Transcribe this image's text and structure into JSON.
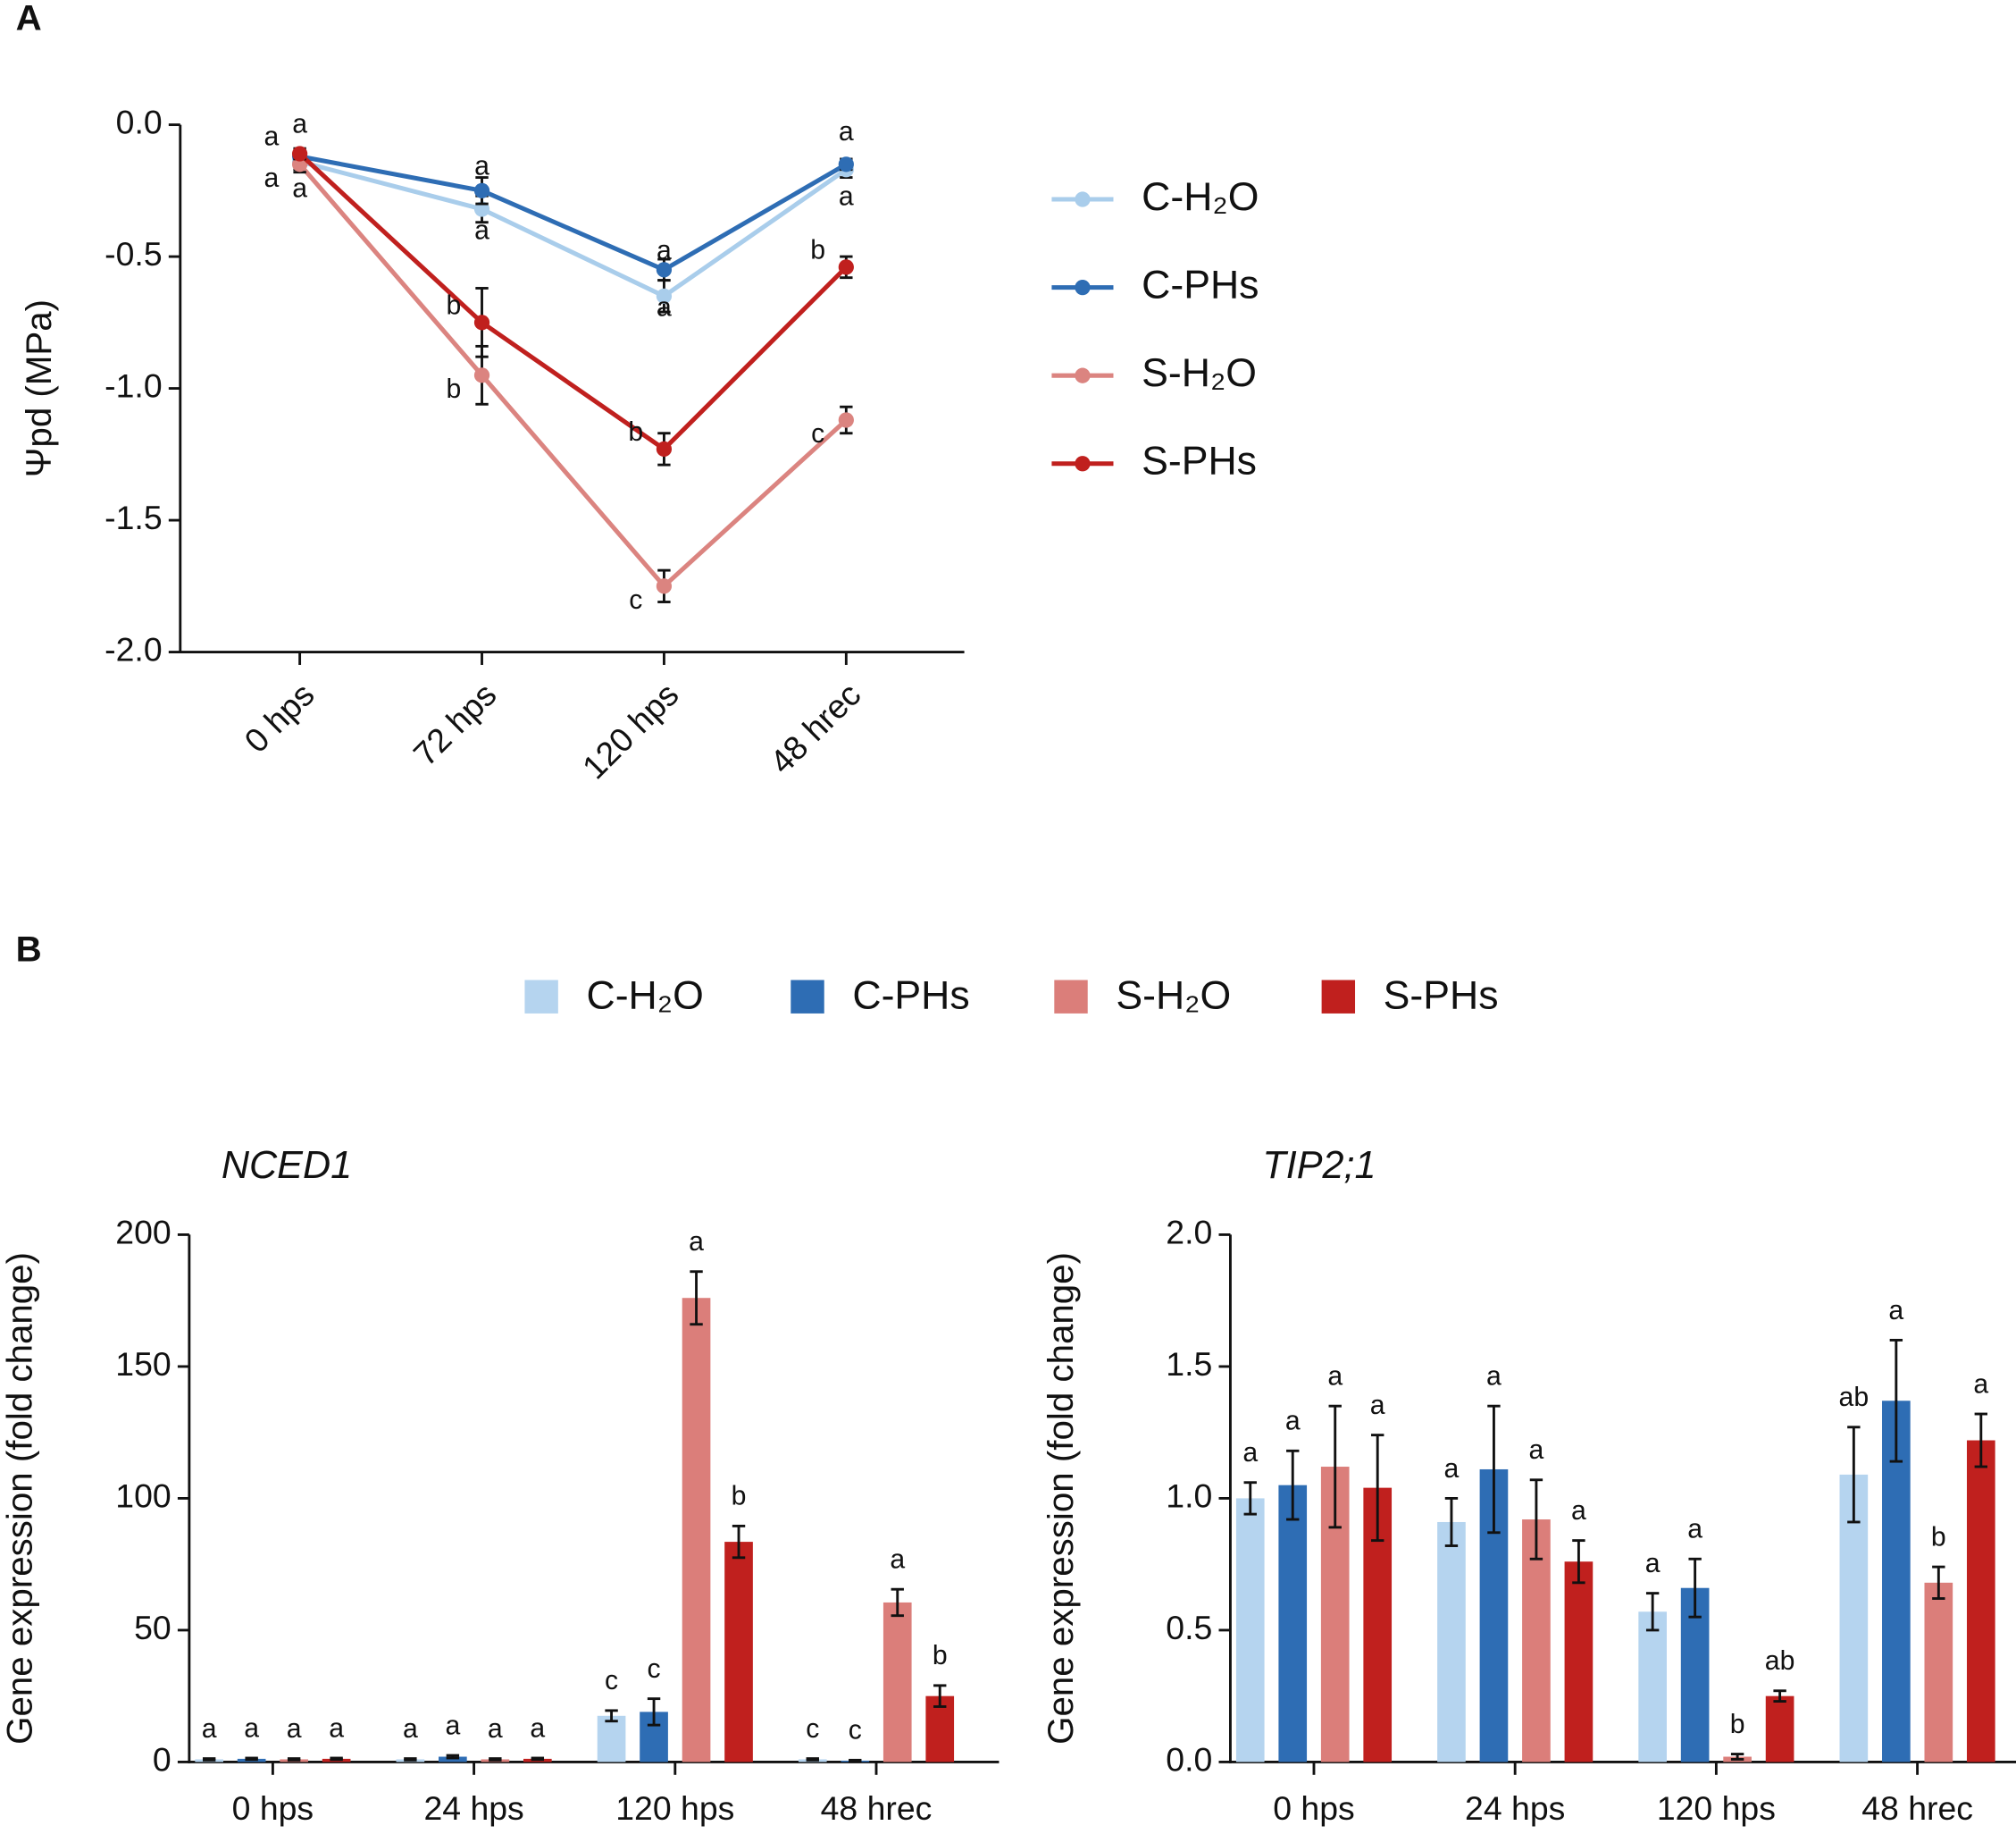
{
  "chart_data": [
    {
      "type": "line",
      "panel_label": "A",
      "ylabel": "Ψpd (MPa)",
      "categories": [
        "0 hps",
        "72 hps",
        "120 hps",
        "48 hrec"
      ],
      "ylim": [
        -2,
        0
      ],
      "yticks": [
        {
          "value": 0,
          "label": "0.0"
        },
        {
          "value": -0.5,
          "label": "-0.5"
        },
        {
          "value": -1,
          "label": "-1.0"
        },
        {
          "value": -1.5,
          "label": "-1.5"
        },
        {
          "value": -2,
          "label": "-2.0"
        }
      ],
      "series": [
        {
          "name": "C-H₂O",
          "color": "#a9cdeb",
          "values": [
            -0.14,
            -0.32,
            -0.65,
            -0.17
          ],
          "errors": [
            0.03,
            0.05,
            0.06,
            0.03
          ],
          "letters": [
            "a",
            "a",
            "a",
            "a"
          ]
        },
        {
          "name": "C-PHs",
          "color": "#2e6db4",
          "values": [
            -0.12,
            -0.25,
            -0.55,
            -0.15
          ],
          "errors": [
            0.02,
            0.05,
            0.04,
            0.02
          ],
          "letters": [
            "a",
            "a",
            "a",
            "a"
          ]
        },
        {
          "name": "S-H₂O",
          "color": "#db8480",
          "values": [
            -0.15,
            -0.95,
            -1.75,
            -1.12
          ],
          "errors": [
            0.03,
            0.11,
            0.06,
            0.05
          ],
          "letters": [
            "a",
            "b",
            "c",
            "c"
          ]
        },
        {
          "name": "S-PHs",
          "color": "#c0201e",
          "values": [
            -0.11,
            -0.75,
            -1.23,
            -0.54
          ],
          "errors": [
            0.02,
            0.13,
            0.06,
            0.04
          ],
          "letters": [
            "a",
            "b",
            "b",
            "b"
          ]
        }
      ]
    },
    {
      "type": "bar",
      "panel_label": "B",
      "series": [
        {
          "name": "C-H₂O",
          "color": "#b5d4ef"
        },
        {
          "name": "C-PHs",
          "color": "#2e6db4"
        },
        {
          "name": "S-H₂O",
          "color": "#db7e7a"
        },
        {
          "name": "S-PHs",
          "color": "#c0201e"
        }
      ],
      "subplots": [
        {
          "title": "NCED1",
          "ylabel": "Gene expression (fold change)",
          "categories": [
            "0 hps",
            "24 hps",
            "120 hps",
            "48 hrec"
          ],
          "ylim": [
            0,
            200
          ],
          "yticks": [
            0,
            50,
            100,
            150,
            200
          ],
          "values": [
            [
              1,
              1,
              17.5,
              1
            ],
            [
              1.2,
              2,
              19,
              0.5
            ],
            [
              1,
              1,
              176,
              60.5
            ],
            [
              1.2,
              1.2,
              83.5,
              25
            ]
          ],
          "errors": [
            [
              0.3,
              0.3,
              2,
              0.3
            ],
            [
              0.3,
              0.5,
              5,
              0.2
            ],
            [
              0.3,
              0.3,
              10,
              5
            ],
            [
              0.3,
              0.3,
              6,
              4
            ]
          ],
          "letters": [
            [
              "a",
              "a",
              "c",
              "c"
            ],
            [
              "a",
              "a",
              "c",
              "c"
            ],
            [
              "a",
              "a",
              "a",
              "a"
            ],
            [
              "a",
              "a",
              "b",
              "b"
            ]
          ]
        },
        {
          "title": "TIP2;1",
          "ylabel": "Gene expression (fold change)",
          "categories": [
            "0 hps",
            "24 hps",
            "120 hps",
            "48 hrec"
          ],
          "ylim": [
            0,
            2
          ],
          "yticks": [
            {
              "value": 0,
              "label": "0.0"
            },
            {
              "value": 0.5,
              "label": "0.5"
            },
            {
              "value": 1,
              "label": "1.0"
            },
            {
              "value": 1.5,
              "label": "1.5"
            },
            {
              "value": 2,
              "label": "2.0"
            }
          ],
          "values": [
            [
              1.0,
              0.91,
              0.57,
              1.09
            ],
            [
              1.05,
              1.11,
              0.66,
              1.37
            ],
            [
              1.12,
              0.92,
              0.02,
              0.68
            ],
            [
              1.04,
              0.76,
              0.25,
              1.22
            ]
          ],
          "errors": [
            [
              0.06,
              0.09,
              0.07,
              0.18
            ],
            [
              0.13,
              0.24,
              0.11,
              0.23
            ],
            [
              0.23,
              0.15,
              0.01,
              0.06
            ],
            [
              0.2,
              0.08,
              0.02,
              0.1
            ]
          ],
          "letters": [
            [
              "a",
              "a",
              "a",
              "ab"
            ],
            [
              "a",
              "a",
              "a",
              "a"
            ],
            [
              "a",
              "a",
              "b",
              "b"
            ],
            [
              "a",
              "a",
              "ab",
              "a"
            ]
          ]
        }
      ]
    }
  ]
}
